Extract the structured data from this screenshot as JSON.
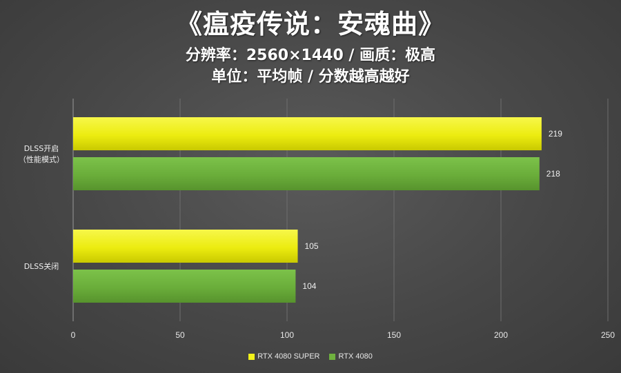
{
  "header": {
    "title": "《瘟疫传说：安魂曲》",
    "subtitle1": "分辨率：2560×1440 / 画质：极高",
    "subtitle2": "单位：平均帧 / 分数越高越好"
  },
  "chart_data": {
    "type": "bar",
    "orientation": "horizontal",
    "categories": [
      "DLSS开启\n（性能模式）",
      "DLSS关闭"
    ],
    "series": [
      {
        "name": "RTX 4080 SUPER",
        "values": [
          219,
          105
        ],
        "color": "#f2f21a"
      },
      {
        "name": "RTX 4080",
        "values": [
          218,
          104
        ],
        "color": "#6fb13e"
      }
    ],
    "xlim": [
      0,
      250
    ],
    "xticks": [
      0,
      50,
      100,
      150,
      200,
      250
    ],
    "grid": true,
    "legend": "bottom"
  }
}
